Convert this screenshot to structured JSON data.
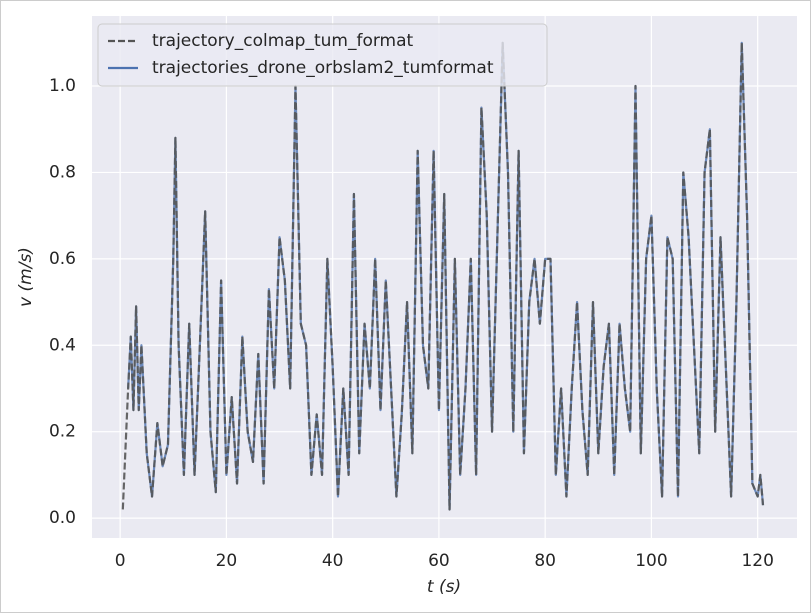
{
  "chart_data": {
    "type": "line",
    "xlabel": "t (s)",
    "ylabel": "v (m/s)",
    "x": [
      0.5,
      1.5,
      2,
      2.5,
      3,
      3.5,
      4,
      5,
      6,
      7,
      8,
      9,
      10,
      10.4,
      11,
      12,
      13,
      14,
      15,
      16,
      17,
      18,
      19,
      20,
      21,
      22,
      23,
      24,
      25,
      26,
      27,
      28,
      29,
      30,
      31,
      32,
      33,
      34,
      35,
      36,
      37,
      38,
      39,
      40,
      41,
      42,
      43,
      44,
      45,
      46,
      47,
      48,
      49,
      50,
      51,
      52,
      53,
      54,
      55,
      56,
      57,
      58,
      59,
      60,
      61,
      62,
      63,
      64,
      65,
      66,
      67,
      68,
      69,
      70,
      71,
      72,
      73,
      74,
      75,
      76,
      77,
      78,
      79,
      80,
      81,
      82,
      83,
      84,
      85,
      86,
      87,
      88,
      89,
      90,
      91,
      92,
      93,
      94,
      95,
      96,
      97,
      98,
      99,
      100,
      101,
      102,
      103,
      104,
      105,
      106,
      107,
      108,
      109,
      110,
      111,
      112,
      113,
      114,
      115,
      116,
      117,
      118,
      119,
      120,
      120.5,
      121
    ],
    "series": [
      {
        "name": "trajectory_colmap_tum_format",
        "color": "#555555",
        "dashed": true,
        "values": [
          0.02,
          0.3,
          0.42,
          0.25,
          0.49,
          0.25,
          0.4,
          0.15,
          0.05,
          0.22,
          0.12,
          0.17,
          0.6,
          0.88,
          0.4,
          0.1,
          0.45,
          0.1,
          0.4,
          0.71,
          0.2,
          0.06,
          0.55,
          0.1,
          0.28,
          0.08,
          0.42,
          0.2,
          0.13,
          0.38,
          0.08,
          0.53,
          0.3,
          0.65,
          0.55,
          0.3,
          1.0,
          0.45,
          0.4,
          0.1,
          0.24,
          0.1,
          0.6,
          0.35,
          0.05,
          0.3,
          0.1,
          0.75,
          0.15,
          0.45,
          0.3,
          0.6,
          0.25,
          0.55,
          0.3,
          0.05,
          0.24,
          0.5,
          0.15,
          0.85,
          0.4,
          0.3,
          0.85,
          0.25,
          0.75,
          0.02,
          0.6,
          0.1,
          0.3,
          0.6,
          0.1,
          0.95,
          0.7,
          0.2,
          0.65,
          1.1,
          0.8,
          0.2,
          0.85,
          0.15,
          0.5,
          0.6,
          0.45,
          0.6,
          0.6,
          0.1,
          0.3,
          0.05,
          0.3,
          0.5,
          0.25,
          0.1,
          0.5,
          0.15,
          0.35,
          0.45,
          0.1,
          0.45,
          0.3,
          0.2,
          1.0,
          0.15,
          0.6,
          0.7,
          0.3,
          0.05,
          0.65,
          0.6,
          0.05,
          0.8,
          0.65,
          0.4,
          0.15,
          0.8,
          0.9,
          0.2,
          0.65,
          0.35,
          0.05,
          0.5,
          1.1,
          0.7,
          0.08,
          0.05,
          0.1,
          0.03
        ]
      },
      {
        "name": "trajectories_drone_orbslam2_tumformat",
        "color": "#4c72b0",
        "dashed": false,
        "values": [
          null,
          0.3,
          0.42,
          0.25,
          0.49,
          0.25,
          0.4,
          0.15,
          0.05,
          0.22,
          0.12,
          0.17,
          0.6,
          0.88,
          0.4,
          0.1,
          0.45,
          0.1,
          0.4,
          0.71,
          0.2,
          0.06,
          0.55,
          0.1,
          0.28,
          0.08,
          0.42,
          0.2,
          0.13,
          0.38,
          0.08,
          0.53,
          0.3,
          0.65,
          0.55,
          0.3,
          1.0,
          0.45,
          0.4,
          0.1,
          0.24,
          0.1,
          0.6,
          0.35,
          0.05,
          0.3,
          0.1,
          0.75,
          0.15,
          0.45,
          0.3,
          0.6,
          0.25,
          0.55,
          0.3,
          0.05,
          0.24,
          0.5,
          0.15,
          0.85,
          0.4,
          0.3,
          0.85,
          0.25,
          0.75,
          0.02,
          0.6,
          0.1,
          0.3,
          0.6,
          0.1,
          0.95,
          0.7,
          0.2,
          0.65,
          1.1,
          0.8,
          0.2,
          0.85,
          0.15,
          0.5,
          0.6,
          0.45,
          0.6,
          0.6,
          0.1,
          0.3,
          0.05,
          0.3,
          0.5,
          0.25,
          0.1,
          0.5,
          0.15,
          0.35,
          0.45,
          0.1,
          0.45,
          0.3,
          0.2,
          1.0,
          0.15,
          0.6,
          0.7,
          0.3,
          0.05,
          0.65,
          0.6,
          0.05,
          0.8,
          0.65,
          0.4,
          0.15,
          0.8,
          0.9,
          0.2,
          0.65,
          0.35,
          0.05,
          0.5,
          1.1,
          0.7,
          0.08,
          0.05,
          0.1,
          0.03
        ]
      }
    ],
    "xlim": [
      -5.3,
      127.4
    ],
    "xticks": [
      0,
      20,
      40,
      60,
      80,
      100,
      120
    ],
    "ylim": [
      -0.046,
      1.162
    ],
    "yticks": [
      {
        "value": 0,
        "label": "0.0"
      },
      0.2,
      0.4,
      0.6,
      0.8,
      {
        "value": 1,
        "label": "1.0"
      }
    ],
    "grid": true,
    "legend": "upper left"
  }
}
